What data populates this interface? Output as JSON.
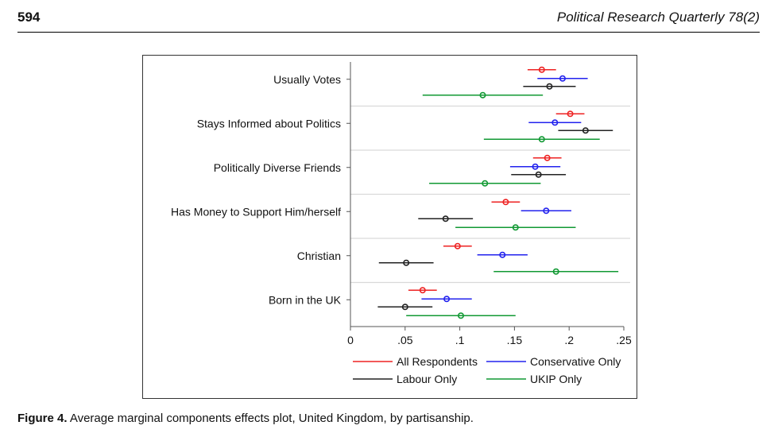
{
  "header": {
    "page_number": "594",
    "journal": "Political Research Quarterly 78(2)"
  },
  "caption": {
    "label": "Figure 4.",
    "text": "Average marginal components effects plot, United Kingdom, by partisanship."
  },
  "colors": {
    "all": "#ee2222",
    "conservative": "#2222ee",
    "labour": "#222222",
    "ukip": "#119933"
  },
  "chart_data": {
    "type": "coefficient-plot",
    "xlim": [
      0,
      0.25
    ],
    "x_ticks": [
      0,
      0.05,
      0.1,
      0.15,
      0.2,
      0.25
    ],
    "x_tick_labels": [
      "0",
      ".05",
      ".1",
      ".15",
      ".2",
      ".25"
    ],
    "categories": [
      "Usually Votes",
      "Stays Informed about Politics",
      "Politically Diverse Friends",
      "Has Money to Support Him/herself",
      "Christian",
      "Born in the UK"
    ],
    "legend": {
      "placement": "bottom",
      "entries": [
        "All Respondents",
        "Conservative Only",
        "Labour Only",
        "UKIP Only"
      ]
    },
    "series": [
      {
        "key": "all",
        "name": "All Respondents",
        "estimates": [
          0.175,
          0.201,
          0.18,
          0.142,
          0.098,
          0.066
        ],
        "ci_low": [
          0.162,
          0.188,
          0.167,
          0.129,
          0.085,
          0.053
        ],
        "ci_high": [
          0.188,
          0.214,
          0.193,
          0.155,
          0.111,
          0.079
        ]
      },
      {
        "key": "conservative",
        "name": "Conservative Only",
        "estimates": [
          0.194,
          0.187,
          0.169,
          0.179,
          0.139,
          0.088
        ],
        "ci_low": [
          0.171,
          0.163,
          0.146,
          0.156,
          0.116,
          0.065
        ],
        "ci_high": [
          0.217,
          0.211,
          0.192,
          0.202,
          0.162,
          0.111
        ]
      },
      {
        "key": "labour",
        "name": "Labour Only",
        "estimates": [
          0.182,
          0.215,
          0.172,
          0.087,
          0.051,
          0.05
        ],
        "ci_low": [
          0.158,
          0.19,
          0.147,
          0.062,
          0.026,
          0.025
        ],
        "ci_high": [
          0.206,
          0.24,
          0.197,
          0.112,
          0.076,
          0.075
        ]
      },
      {
        "key": "ukip",
        "name": "UKIP Only",
        "estimates": [
          0.121,
          0.175,
          0.123,
          0.151,
          0.188,
          0.101
        ],
        "ci_low": [
          0.066,
          0.122,
          0.072,
          0.096,
          0.131,
          0.051
        ],
        "ci_high": [
          0.176,
          0.228,
          0.174,
          0.206,
          0.245,
          0.151
        ]
      }
    ]
  }
}
